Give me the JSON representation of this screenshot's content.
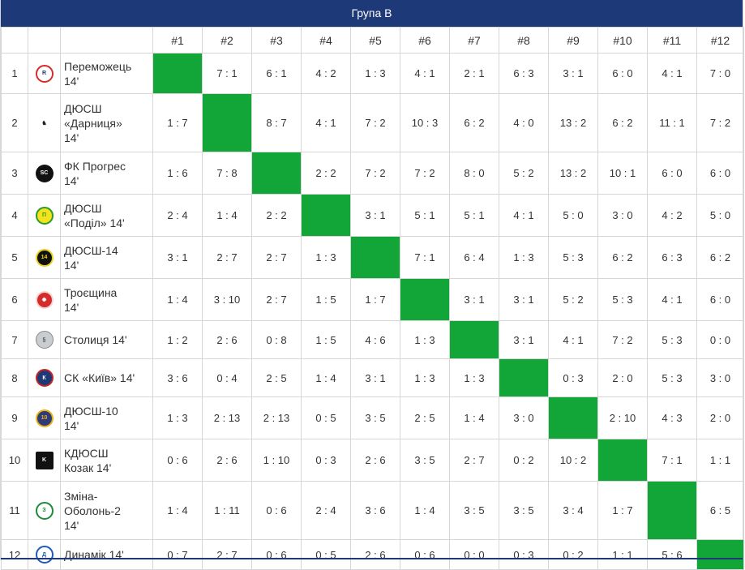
{
  "title": "Група B",
  "columns": [
    "#1",
    "#2",
    "#3",
    "#4",
    "#5",
    "#6",
    "#7",
    "#8",
    "#9",
    "#10",
    "#11",
    "#12"
  ],
  "colors": {
    "header_bg": "#1d3978",
    "diagonal": "#12a537"
  },
  "rows": [
    {
      "pos": "1",
      "logo": "pobeda-logo",
      "name": [
        "Переможець",
        "14'"
      ],
      "results": [
        "",
        "7 : 1",
        "6 : 1",
        "4 : 2",
        "1 : 3",
        "4 : 1",
        "2 : 1",
        "6 : 3",
        "3 : 1",
        "6 : 0",
        "4 : 1",
        "7 : 0"
      ]
    },
    {
      "pos": "2",
      "logo": "darnytsia-logo",
      "name": [
        "ДЮСШ",
        "«Дарниця»",
        "14'"
      ],
      "results": [
        "1 : 7",
        "",
        "8 : 7",
        "4 : 1",
        "7 : 2",
        "10 : 3",
        "6 : 2",
        "4 : 0",
        "13 : 2",
        "6 : 2",
        "11 : 1",
        "7 : 2"
      ]
    },
    {
      "pos": "3",
      "logo": "progres-logo",
      "name": [
        "ФК Прогрес",
        "14'"
      ],
      "results": [
        "1 : 6",
        "7 : 8",
        "",
        "2 : 2",
        "7 : 2",
        "7 : 2",
        "8 : 0",
        "5 : 2",
        "13 : 2",
        "10 : 1",
        "6 : 0",
        "6 : 0"
      ]
    },
    {
      "pos": "4",
      "logo": "podil-logo",
      "name": [
        "ДЮСШ",
        "«Поділ» 14'"
      ],
      "results": [
        "2 : 4",
        "1 : 4",
        "2 : 2",
        "",
        "3 : 1",
        "5 : 1",
        "5 : 1",
        "4 : 1",
        "5 : 0",
        "3 : 0",
        "4 : 2",
        "5 : 0"
      ]
    },
    {
      "pos": "5",
      "logo": "dyussh14-logo",
      "name": [
        "ДЮСШ-14",
        "14'"
      ],
      "results": [
        "3 : 1",
        "2 : 7",
        "2 : 7",
        "1 : 3",
        "",
        "7 : 1",
        "6 : 4",
        "1 : 3",
        "5 : 3",
        "6 : 2",
        "6 : 3",
        "6 : 2"
      ]
    },
    {
      "pos": "6",
      "logo": "troieshchyna-logo",
      "name": [
        "Троєщина",
        "14'"
      ],
      "results": [
        "1 : 4",
        "3 : 10",
        "2 : 7",
        "1 : 5",
        "1 : 7",
        "",
        "3 : 1",
        "3 : 1",
        "5 : 2",
        "5 : 3",
        "4 : 1",
        "6 : 0"
      ]
    },
    {
      "pos": "7",
      "logo": "stolytsia-logo",
      "name": [
        "Столиця 14'"
      ],
      "results": [
        "1 : 2",
        "2 : 6",
        "0 : 8",
        "1 : 5",
        "4 : 6",
        "1 : 3",
        "",
        "3 : 1",
        "4 : 1",
        "7 : 2",
        "5 : 3",
        "0 : 0"
      ]
    },
    {
      "pos": "8",
      "logo": "sk-kyiv-logo",
      "name": [
        "СК «Київ» 14'"
      ],
      "results": [
        "3 : 6",
        "0 : 4",
        "2 : 5",
        "1 : 4",
        "3 : 1",
        "1 : 3",
        "1 : 3",
        "",
        "0 : 3",
        "2 : 0",
        "5 : 3",
        "3 : 0"
      ]
    },
    {
      "pos": "9",
      "logo": "dyussh10-logo",
      "name": [
        "ДЮСШ-10",
        "14'"
      ],
      "results": [
        "1 : 3",
        "2 : 13",
        "2 : 13",
        "0 : 5",
        "3 : 5",
        "2 : 5",
        "1 : 4",
        "3 : 0",
        "",
        "2 : 10",
        "4 : 3",
        "2 : 0"
      ]
    },
    {
      "pos": "10",
      "logo": "kozak-logo",
      "name": [
        "КДЮСШ",
        "Козак 14'"
      ],
      "results": [
        "0 : 6",
        "2 : 6",
        "1 : 10",
        "0 : 3",
        "2 : 6",
        "3 : 5",
        "2 : 7",
        "0 : 2",
        "10 : 2",
        "",
        "7 : 1",
        "1 : 1"
      ]
    },
    {
      "pos": "11",
      "logo": "zmina-logo",
      "name": [
        "Зміна-",
        "Оболонь-2",
        "14'"
      ],
      "results": [
        "1 : 4",
        "1 : 11",
        "0 : 6",
        "2 : 4",
        "3 : 6",
        "1 : 4",
        "3 : 5",
        "3 : 5",
        "3 : 4",
        "1 : 7",
        "",
        "6 : 5"
      ]
    },
    {
      "pos": "12",
      "logo": "dynamik-logo",
      "name": [
        "Динамік 14'"
      ],
      "results": [
        "0 : 7",
        "2 : 7",
        "0 : 6",
        "0 : 5",
        "2 : 6",
        "0 : 6",
        "0 : 0",
        "0 : 3",
        "0 : 2",
        "1 : 1",
        "5 : 6",
        ""
      ]
    }
  ]
}
